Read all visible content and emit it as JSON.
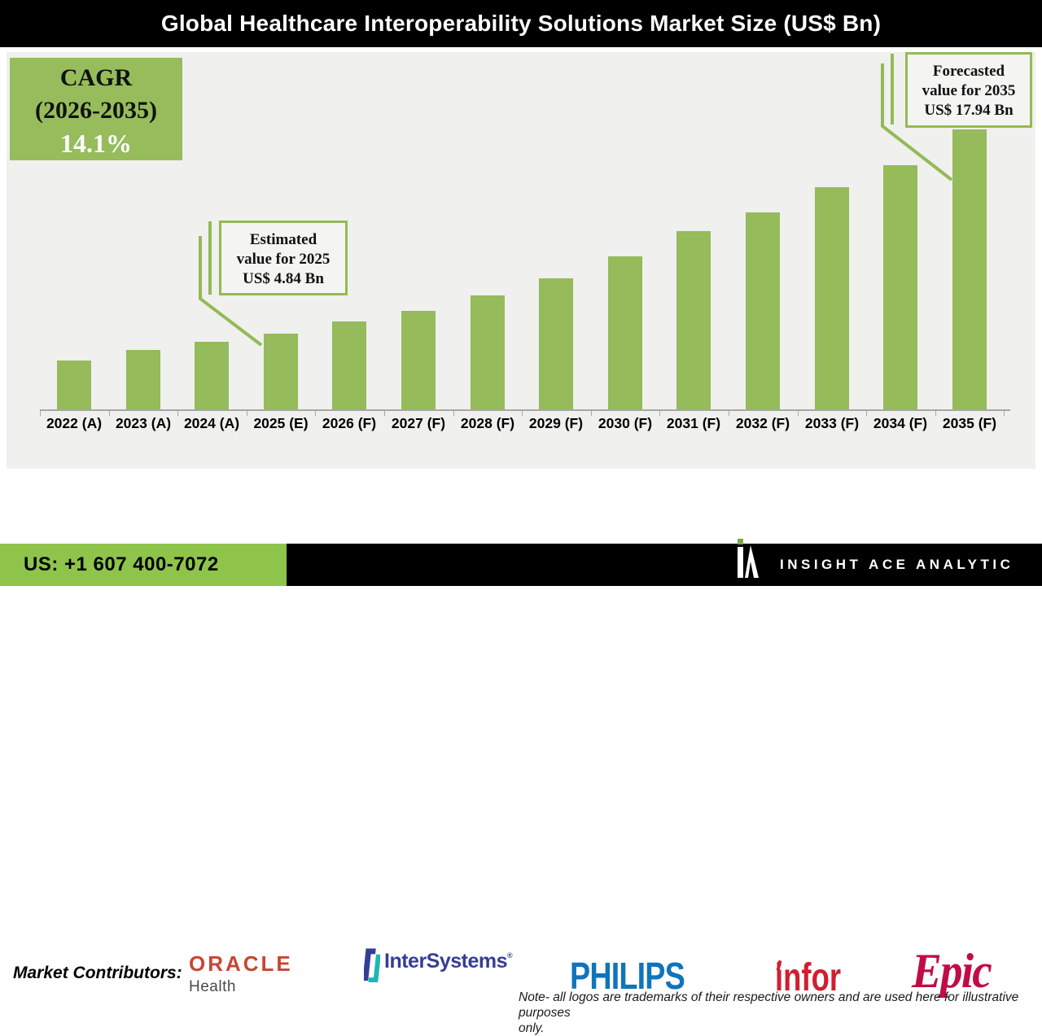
{
  "header": {
    "title": "Global Healthcare Interoperability Solutions Market Size (US$ Bn)"
  },
  "cagr_box": {
    "line1": "CAGR",
    "line2": "(2026-2035)",
    "line3": "14.1%"
  },
  "callouts": {
    "estimated": {
      "line1": "Estimated",
      "line2": "value for 2025",
      "line3": "US$ 4.84 Bn"
    },
    "forecast": {
      "line1": "Forecasted",
      "line2": "value for 2035",
      "line3": "US$ 17.94 Bn"
    }
  },
  "chart_data": {
    "type": "bar",
    "title": "Global Healthcare Interoperability Solutions Market Size (US$ Bn)",
    "unit": "US$ Bn",
    "categories": [
      "2022 (A)",
      "2023 (A)",
      "2024 (A)",
      "2025 (E)",
      "2026 (F)",
      "2027 (F)",
      "2028 (F)",
      "2029 (F)",
      "2030 (F)",
      "2031 (F)",
      "2032 (F)",
      "2033 (F)",
      "2034 (F)",
      "2035 (F)"
    ],
    "values": [
      3.1,
      3.8,
      4.3,
      4.84,
      5.6,
      6.3,
      7.3,
      8.4,
      9.8,
      11.4,
      12.6,
      14.2,
      15.6,
      17.94
    ],
    "labeled_points": {
      "2025 (E)": 4.84,
      "2035 (F)": 17.94
    },
    "cagr": "14.1% (2026-2035)",
    "bar_color": "#95BB5A",
    "grid": false,
    "legend": false,
    "ylim": [
      0,
      20
    ]
  },
  "contributors": {
    "label": "Market Contributors:",
    "logos": {
      "oracle_line1": "ORACLE",
      "oracle_line2": "Health",
      "intersystems": "InterSystems",
      "intersystems_reg": "®",
      "philips": "PHILIPS",
      "infor": "infor",
      "epic": "Epic"
    },
    "note_line1": "Note- all logos are trademarks of their respective owners and are used here for illustrative purposes",
    "note_line2": "only."
  },
  "footer": {
    "phone": "US: +1 607 400-7072",
    "brand": "INSIGHT ACE ANALYTIC"
  },
  "colors": {
    "bar_green": "#95BB5A",
    "cagr_green": "#97BC5C",
    "footer_green": "#8EC44A",
    "callout_border": "#94BA55",
    "philips_blue": "#1074BC",
    "infor_red": "#D01F2F",
    "epic_crimson": "#C10C44",
    "oracle_red": "#C74634",
    "intersystems_navy": "#363D94",
    "intersystems_teal": "#1CB8B3"
  }
}
